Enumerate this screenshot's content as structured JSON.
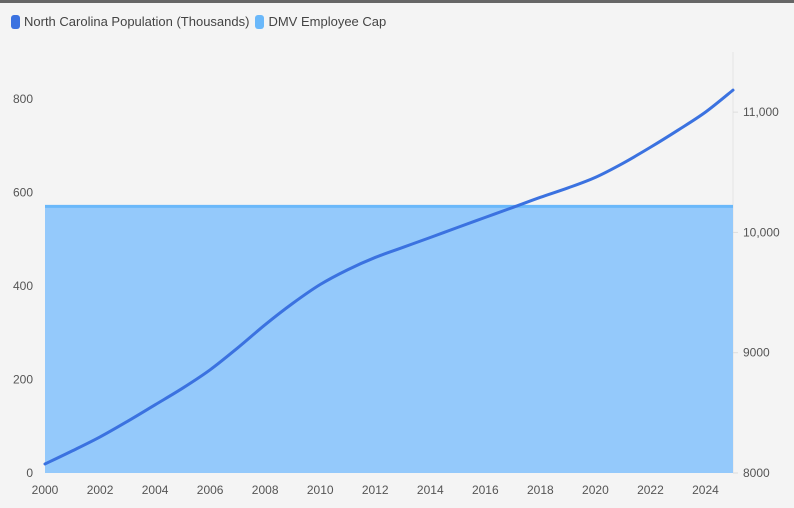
{
  "chart_data": {
    "type": "line",
    "title": "",
    "legend": [
      {
        "name": "North Carolina Population (Thousands)",
        "color": "#3b72e0"
      },
      {
        "name": "DMV Employee Cap",
        "color": "#6ab8fa"
      }
    ],
    "legend_placement": "top-left",
    "x": [
      2000,
      2001,
      2002,
      2003,
      2004,
      2005,
      2006,
      2007,
      2008,
      2009,
      2010,
      2011,
      2012,
      2013,
      2014,
      2015,
      2016,
      2017,
      2018,
      2019,
      2020,
      2021,
      2022,
      2023,
      2024,
      2025
    ],
    "x_ticks": [
      "2000",
      "2002",
      "2004",
      "2006",
      "2008",
      "2010",
      "2012",
      "2014",
      "2016",
      "2018",
      "2020",
      "2022",
      "2024"
    ],
    "xlim": [
      2000,
      2025
    ],
    "series": [
      {
        "name": "North Carolina Population (Thousands)",
        "axis": "right",
        "type": "line",
        "values": [
          8075,
          8185,
          8300,
          8430,
          8567,
          8705,
          8858,
          9040,
          9233,
          9410,
          9567,
          9690,
          9792,
          9875,
          9958,
          10042,
          10125,
          10208,
          10292,
          10370,
          10458,
          10575,
          10708,
          10850,
          11000,
          11183
        ]
      },
      {
        "name": "DMV Employee Cap",
        "axis": "left",
        "type": "area",
        "values": [
          570,
          570,
          570,
          570,
          570,
          570,
          570,
          570,
          570,
          570,
          570,
          570,
          570,
          570,
          570,
          570,
          570,
          570,
          570,
          570,
          570,
          570,
          570,
          570,
          570,
          570
        ]
      }
    ],
    "y_left": {
      "ylim": [
        0,
        900
      ],
      "ticks": [
        "0",
        "200",
        "400",
        "600",
        "800"
      ],
      "tick_values": [
        0,
        200,
        400,
        600,
        800
      ]
    },
    "y_right": {
      "ylim": [
        8000,
        11500
      ],
      "ticks": [
        "8000",
        "9000",
        "10,000",
        "11,000"
      ],
      "tick_values": [
        8000,
        9000,
        10000,
        11000
      ]
    },
    "grid": false
  }
}
